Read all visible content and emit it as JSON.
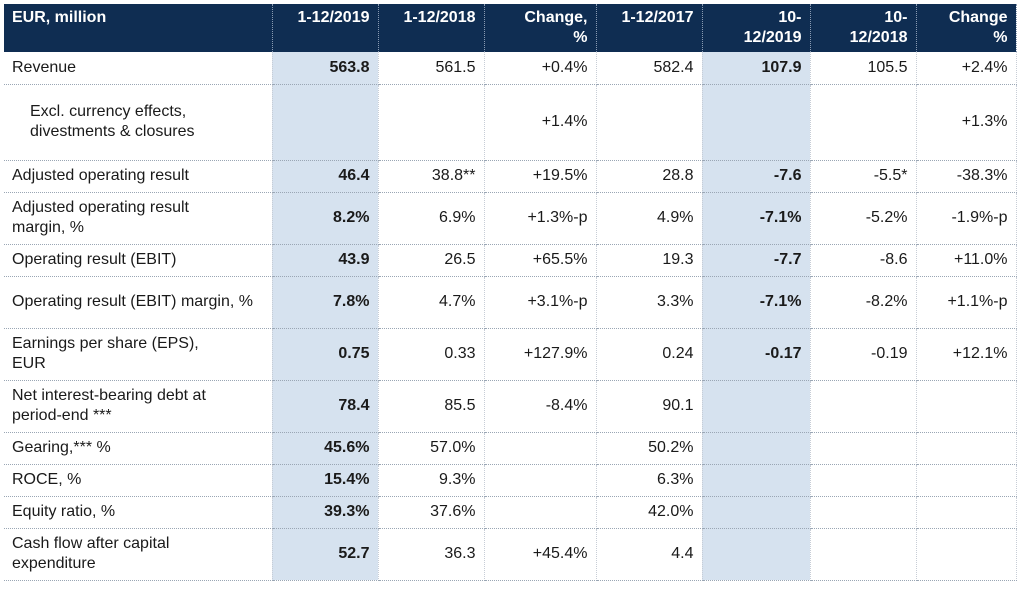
{
  "header": [
    "EUR, million",
    "1-12/2019",
    "1-12/2018",
    "Change, %",
    "1-12/2017",
    "10-12/2019",
    "10-12/2018",
    "Change %"
  ],
  "header_display": [
    [
      "EUR, million"
    ],
    [
      "1-12/2019"
    ],
    [
      "1-12/2018"
    ],
    [
      "Change,",
      "%"
    ],
    [
      "1-12/2017"
    ],
    [
      "10-",
      "12/2019"
    ],
    [
      "10-",
      "12/2018"
    ],
    [
      "Change",
      "%"
    ]
  ],
  "rows": [
    {
      "label": "Revenue",
      "values": [
        "563.8",
        "561.5",
        "+0.4%",
        "582.4",
        "107.9",
        "105.5",
        "+2.4%"
      ]
    },
    {
      "label": "Excl. currency effects, divestments & closures",
      "values": [
        "",
        "",
        "+1.4%",
        "",
        "",
        "",
        "+1.3%"
      ]
    },
    {
      "label": "Adjusted operating result",
      "values": [
        "46.4",
        "38.8**",
        "+19.5%",
        "28.8",
        "-7.6",
        "-5.5*",
        "-38.3%"
      ]
    },
    {
      "label": "Adjusted operating result margin, %",
      "values": [
        "8.2%",
        "6.9%",
        "+1.3%-p",
        "4.9%",
        "-7.1%",
        "-5.2%",
        "-1.9%-p"
      ]
    },
    {
      "label": "Operating result (EBIT)",
      "values": [
        "43.9",
        "26.5",
        "+65.5%",
        "19.3",
        "-7.7",
        "-8.6",
        "+11.0%"
      ]
    },
    {
      "label": "Operating result (EBIT) margin, %",
      "values": [
        "7.8%",
        "4.7%",
        "+3.1%-p",
        "3.3%",
        "-7.1%",
        "-8.2%",
        "+1.1%-p"
      ]
    },
    {
      "label": "Earnings per share (EPS), EUR",
      "values": [
        "0.75",
        "0.33",
        "+127.9%",
        "0.24",
        "-0.17",
        "-0.19",
        "+12.1%"
      ]
    },
    {
      "label": "Net interest-bearing debt at period-end ***",
      "values": [
        "78.4",
        "85.5",
        "-8.4%",
        "90.1",
        "",
        "",
        ""
      ]
    },
    {
      "label": "Gearing,*** %",
      "values": [
        "45.6%",
        "57.0%",
        "",
        "50.2%",
        "",
        "",
        ""
      ]
    },
    {
      "label": "ROCE, %",
      "values": [
        "15.4%",
        "9.3%",
        "",
        "6.3%",
        "",
        "",
        ""
      ]
    },
    {
      "label": "Equity ratio, %",
      "values": [
        "39.3%",
        "37.6%",
        "",
        "42.0%",
        "",
        "",
        ""
      ]
    },
    {
      "label": "Cash flow after capital expenditure",
      "values": [
        "52.7",
        "36.3",
        "+45.4%",
        "4.4",
        "",
        "",
        ""
      ]
    }
  ],
  "colors": {
    "header_bg": "#0f2d52",
    "highlight_bg": "#d6e2ef"
  }
}
